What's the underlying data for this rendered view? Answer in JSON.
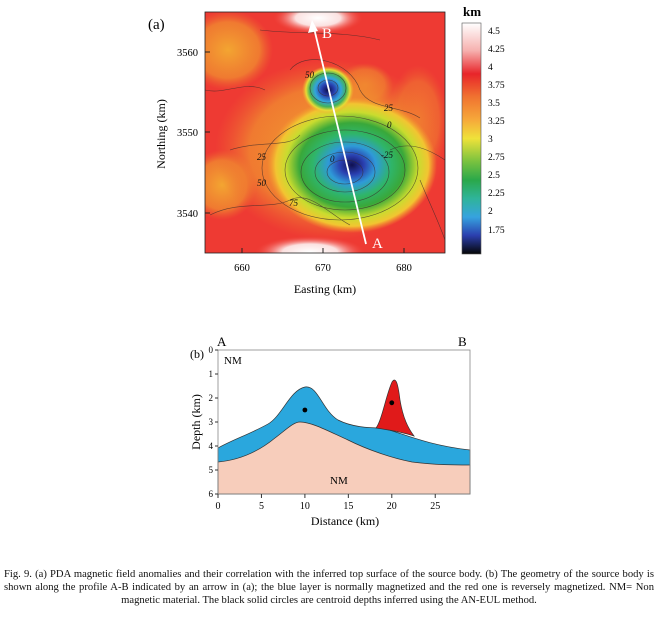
{
  "panel_a": {
    "label": "(a)",
    "profile_start": "A",
    "profile_end": "B",
    "colorbar_unit": "km",
    "chart_data": {
      "type": "heatmap",
      "xlabel": "Easting (km)",
      "ylabel": "Northing (km)",
      "x_ticks": [
        "660",
        "670",
        "680"
      ],
      "y_ticks": [
        "3560",
        "3550",
        "3540"
      ],
      "xlim": [
        655.5,
        685
      ],
      "ylim": [
        3535,
        3565
      ],
      "colorbar": {
        "label": "km",
        "ticks": [
          "4.5",
          "4.25",
          "4",
          "3.75",
          "3.5",
          "3.25",
          "3",
          "2.75",
          "2.5",
          "2.25",
          "2",
          "1.75"
        ]
      },
      "contour_labels": [
        "50",
        "25",
        "0",
        "-25",
        "25",
        "0",
        "50",
        "75"
      ],
      "profile": {
        "start": "A",
        "end": "B",
        "from": [
          675.5,
          3536
        ],
        "to": [
          669.5,
          3564
        ]
      }
    }
  },
  "panel_b": {
    "label": "(b)",
    "end_left": "A",
    "end_right": "B",
    "chart_data": {
      "type": "area",
      "xlabel": "Distance (km)",
      "ylabel": "Depth (km)",
      "x_ticks": [
        "0",
        "5",
        "10",
        "15",
        "20",
        "25"
      ],
      "y_ticks": [
        "0",
        "1",
        "2",
        "3",
        "4",
        "5",
        "6"
      ],
      "xlim": [
        0,
        29
      ],
      "ylim": [
        0,
        6
      ],
      "region_labels": {
        "top": "NM",
        "bottom": "NM"
      },
      "layers": [
        {
          "name": "normally magnetized",
          "color": "#2aa7dd"
        },
        {
          "name": "reversely magnetized",
          "color": "#e01a1a"
        },
        {
          "name": "non magnetic",
          "color": "#f7cdbb"
        }
      ],
      "centroids": [
        {
          "x": 10,
          "depth": 2.5
        },
        {
          "x": 20,
          "depth": 2.2
        }
      ]
    }
  },
  "caption": "Fig. 9. (a) PDA magnetic field anomalies and their correlation with the inferred top surface of the source body. (b) The geometry of the source body is shown along the profile A-B indicated by an arrow in (a); the blue layer is normally magnetized and the red one is reversely magnetized. NM= Non magnetic material. The black solid circles are centroid depths inferred using the AN-EUL method."
}
